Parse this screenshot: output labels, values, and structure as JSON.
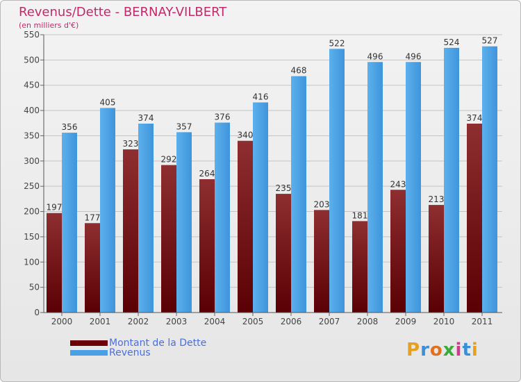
{
  "title": "Revenus/Dette - BERNAY-VILBERT",
  "subtitle": "(en milliers d'€)",
  "brand": "Proxiti",
  "chart_data": {
    "type": "bar",
    "categories": [
      "2000",
      "2001",
      "2002",
      "2003",
      "2004",
      "2005",
      "2006",
      "2007",
      "2008",
      "2009",
      "2010",
      "2011"
    ],
    "series": [
      {
        "name": "Montant de la Dette",
        "values": [
          197,
          177,
          323,
          292,
          264,
          340,
          235,
          203,
          181,
          243,
          213,
          374
        ],
        "color": "#7a0e10"
      },
      {
        "name": "Revenus",
        "values": [
          356,
          405,
          374,
          357,
          376,
          416,
          468,
          522,
          496,
          496,
          524,
          527
        ],
        "color": "#4aa0e4"
      }
    ],
    "yticks": [
      0,
      50,
      100,
      150,
      200,
      250,
      300,
      350,
      400,
      450,
      500,
      550
    ],
    "ylim": [
      0,
      550
    ],
    "grid": true,
    "legend": "bottom-left",
    "title": "Revenus/Dette - BERNAY-VILBERT",
    "subtitle": "(en milliers d'€)"
  },
  "colors": {
    "title": "#c02a6a",
    "legend_text": "#4a6ee0",
    "debt": "#7a0e10",
    "revenue": "#4aa0e4"
  }
}
